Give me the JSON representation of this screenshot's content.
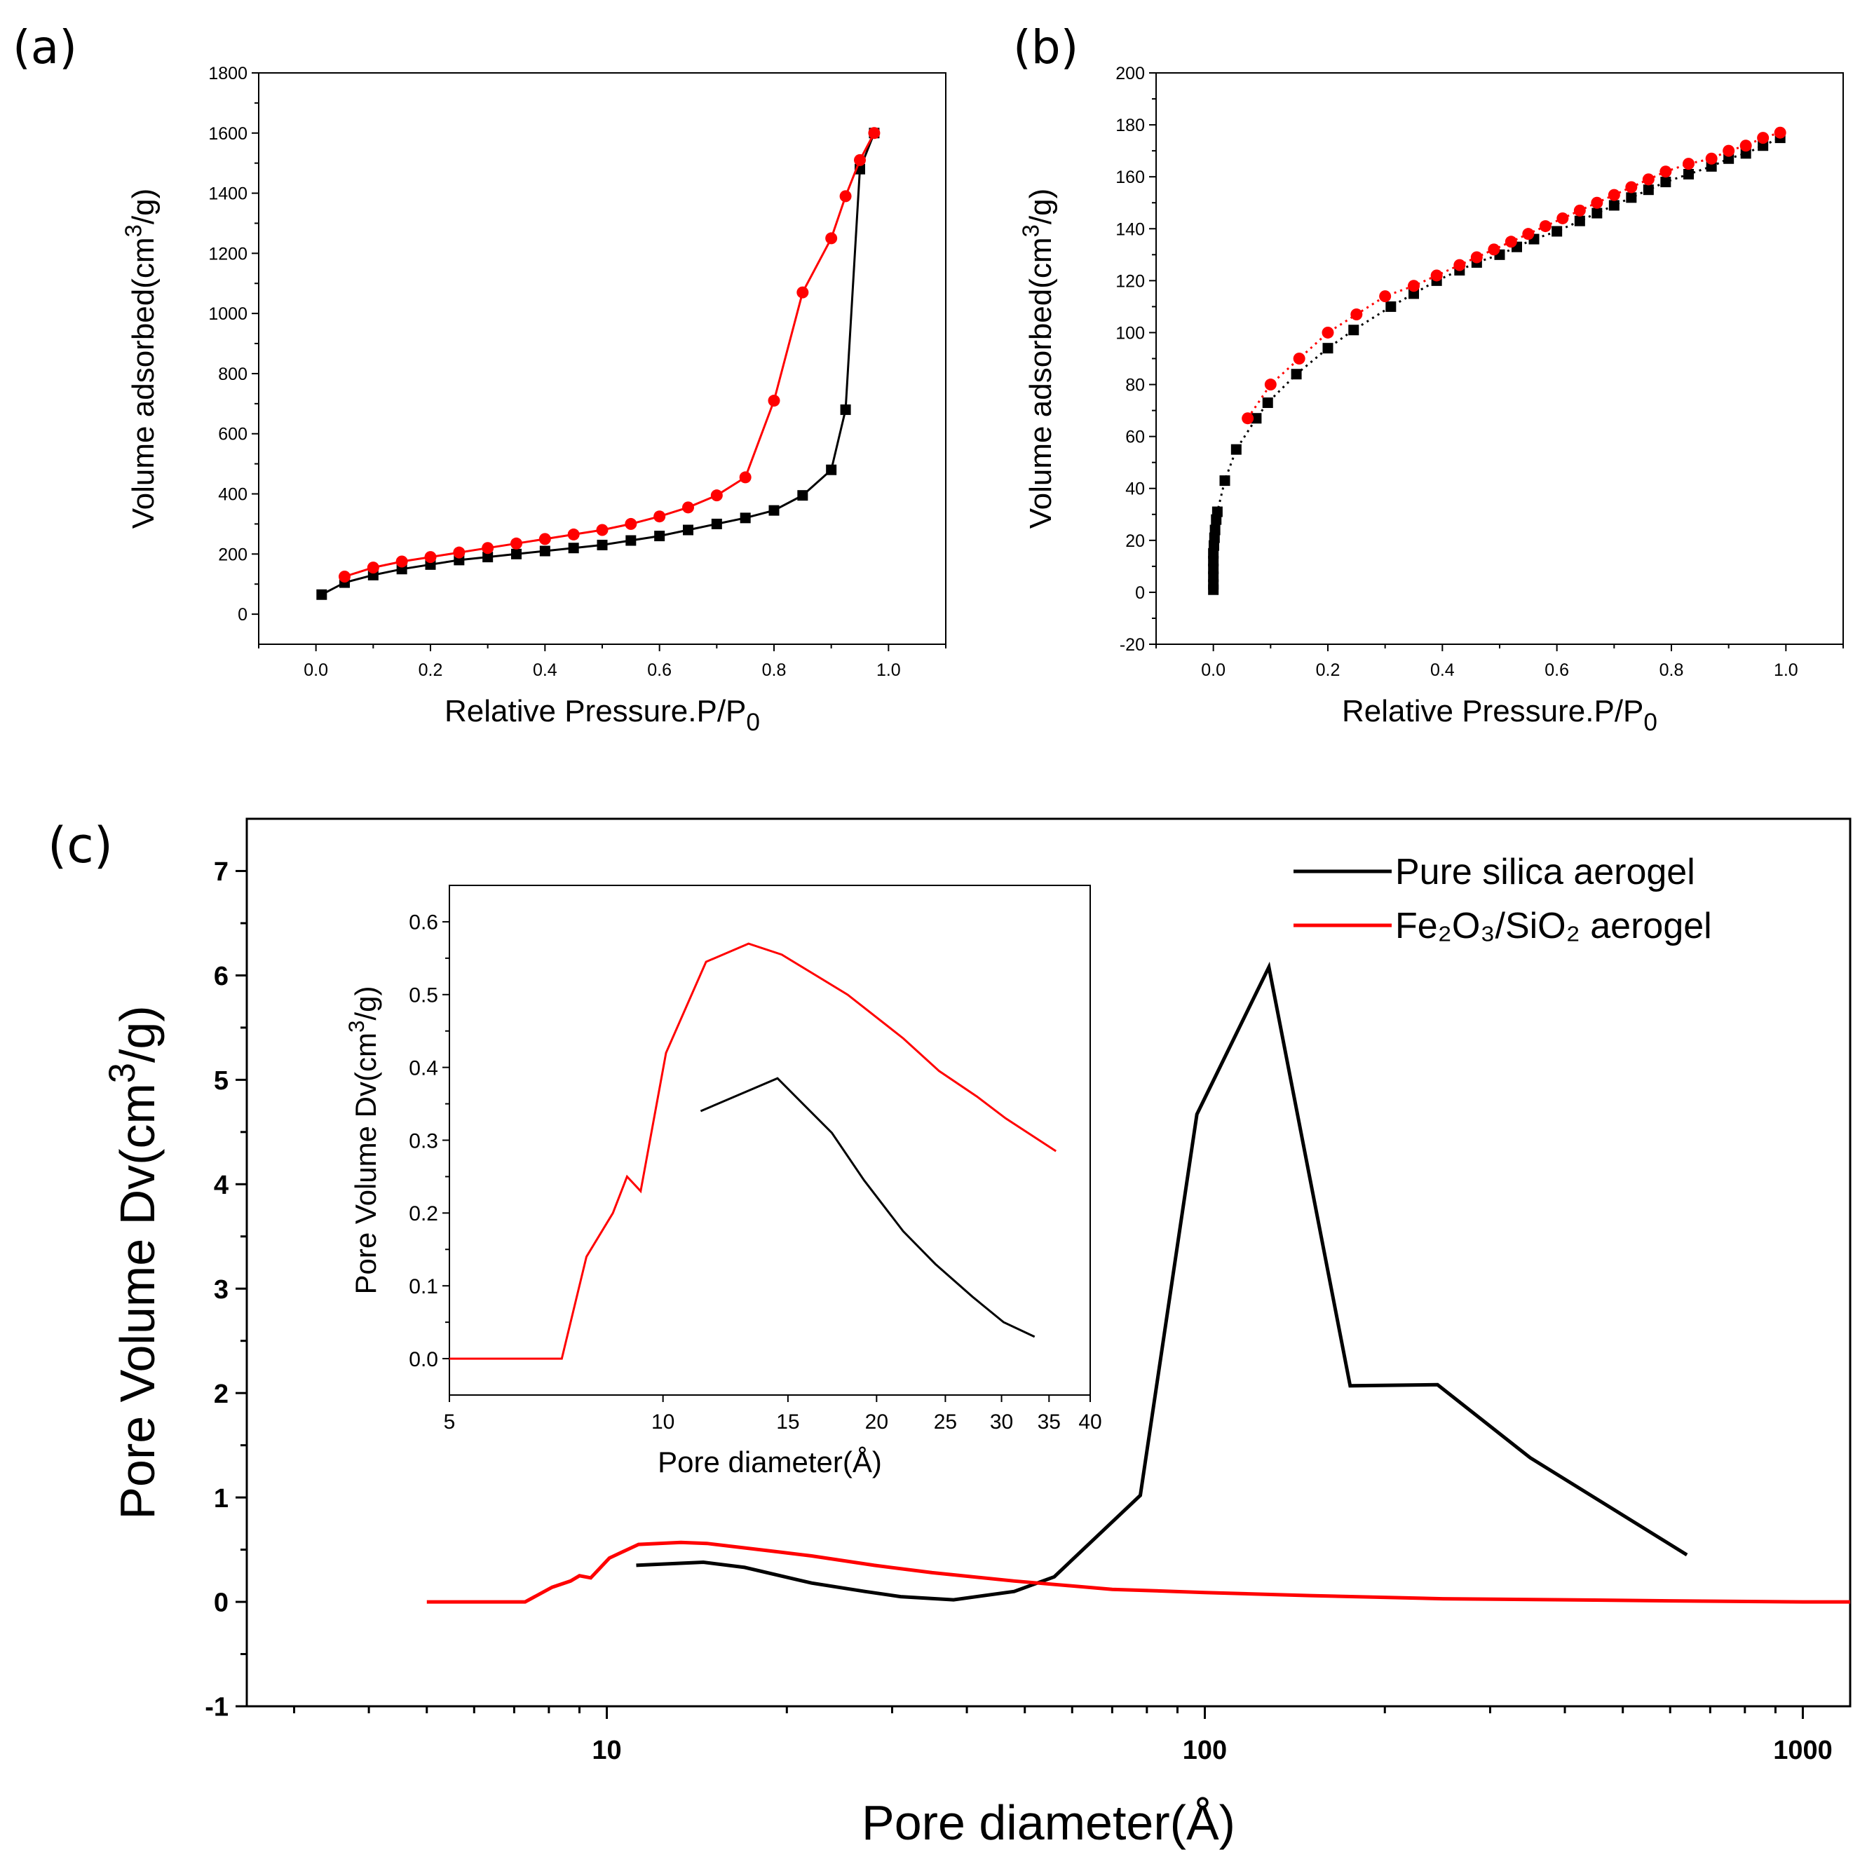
{
  "colors": {
    "black_series": "#000000",
    "red_series": "#ff0000"
  },
  "chart_data": [
    {
      "id": "a",
      "panel_label": "(a)",
      "type": "line",
      "xlabel": "Relative Pressure.P/P",
      "xlabel_sub": "0",
      "ylabel": "Volume adsorbed(cm",
      "ylabel_sup": "3",
      "ylabel_tail": "/g)",
      "xlim": [
        -0.1,
        1.1
      ],
      "ylim": [
        -100,
        1800
      ],
      "xticks": [
        "0.0",
        "0.2",
        "0.4",
        "0.6",
        "0.8",
        "1.0"
      ],
      "yticks": [
        "0",
        "200",
        "400",
        "600",
        "800",
        "1000",
        "1200",
        "1400",
        "1600",
        "1800"
      ],
      "series": [
        {
          "color": "#000000",
          "marker": "square",
          "x": [
            0.01,
            0.05,
            0.1,
            0.15,
            0.2,
            0.25,
            0.3,
            0.35,
            0.4,
            0.45,
            0.5,
            0.55,
            0.6,
            0.65,
            0.7,
            0.75,
            0.8,
            0.85,
            0.9,
            0.925,
            0.95,
            0.975
          ],
          "y": [
            65,
            105,
            130,
            150,
            165,
            180,
            190,
            200,
            210,
            220,
            230,
            245,
            260,
            280,
            300,
            320,
            345,
            395,
            480,
            680,
            1480,
            1600
          ]
        },
        {
          "color": "#ff0000",
          "marker": "circle",
          "x": [
            0.05,
            0.1,
            0.15,
            0.2,
            0.25,
            0.3,
            0.35,
            0.4,
            0.45,
            0.5,
            0.55,
            0.6,
            0.65,
            0.7,
            0.75,
            0.8,
            0.85,
            0.9,
            0.925,
            0.95,
            0.975
          ],
          "y": [
            125,
            155,
            175,
            190,
            205,
            220,
            235,
            250,
            265,
            280,
            300,
            325,
            355,
            395,
            455,
            710,
            1070,
            1250,
            1390,
            1510,
            1600
          ]
        }
      ]
    },
    {
      "id": "b",
      "panel_label": "(b)",
      "type": "scatter",
      "xlabel": "Relative Pressure.P/P",
      "xlabel_sub": "0",
      "ylabel": "Volume adsorbed(cm",
      "ylabel_sup": "3",
      "ylabel_tail": "/g)",
      "xlim": [
        -0.1,
        1.1
      ],
      "ylim": [
        -20,
        200
      ],
      "xticks": [
        "0.0",
        "0.2",
        "0.4",
        "0.6",
        "0.8",
        "1.0"
      ],
      "yticks": [
        "-20",
        "0",
        "20",
        "40",
        "60",
        "80",
        "100",
        "120",
        "140",
        "160",
        "180",
        "200"
      ],
      "series": [
        {
          "color": "#000000",
          "marker": "square",
          "x": [
            0.0,
            0.0,
            0.0,
            0.0,
            0.0,
            0.0,
            0.001,
            0.002,
            0.003,
            0.005,
            0.007,
            0.02,
            0.04,
            0.075,
            0.095,
            0.145,
            0.2,
            0.245,
            0.31,
            0.35,
            0.39,
            0.43,
            0.46,
            0.5,
            0.53,
            0.56,
            0.6,
            0.64,
            0.67,
            0.7,
            0.73,
            0.76,
            0.79,
            0.83,
            0.87,
            0.9,
            0.93,
            0.96,
            0.99
          ],
          "y": [
            1,
            3,
            6,
            9,
            12,
            15,
            18,
            21,
            24,
            28,
            31,
            43,
            55,
            67,
            73,
            84,
            94,
            101,
            110,
            115,
            120,
            124,
            127,
            130,
            133,
            136,
            139,
            143,
            146,
            149,
            152,
            155,
            158,
            161,
            164,
            167,
            169,
            172,
            175
          ]
        },
        {
          "color": "#ff0000",
          "marker": "circle",
          "x": [
            0.06,
            0.1,
            0.15,
            0.2,
            0.25,
            0.3,
            0.35,
            0.39,
            0.43,
            0.46,
            0.49,
            0.52,
            0.55,
            0.58,
            0.61,
            0.64,
            0.67,
            0.7,
            0.73,
            0.76,
            0.79,
            0.83,
            0.87,
            0.9,
            0.93,
            0.96,
            0.99
          ],
          "y": [
            67,
            80,
            90,
            100,
            107,
            114,
            118,
            122,
            126,
            129,
            132,
            135,
            138,
            141,
            144,
            147,
            150,
            153,
            156,
            159,
            162,
            165,
            167,
            170,
            172,
            175,
            177
          ]
        }
      ]
    },
    {
      "id": "c",
      "panel_label": "(c)",
      "type": "line",
      "xscale": "log",
      "xlabel": "Pore diameter(Å)",
      "ylabel": "Pore Volume Dv(cm",
      "ylabel_sup": "3",
      "ylabel_tail": "/g)",
      "xlim": [
        2.5,
        1200
      ],
      "ylim": [
        -1,
        7.5
      ],
      "xticks": [
        "10",
        "100",
        "1000"
      ],
      "yticks": [
        "-1",
        "0",
        "1",
        "2",
        "3",
        "4",
        "5",
        "6",
        "7"
      ],
      "legend": {
        "position": "top-right"
      },
      "series": [
        {
          "name": "Pure silica aerogel",
          "color": "#000000",
          "x": [
            11.2,
            14.5,
            17,
            22,
            27,
            31,
            38,
            48,
            56,
            78,
            97,
            128,
            175,
            245,
            350,
            640
          ],
          "y": [
            0.35,
            0.38,
            0.33,
            0.18,
            0.1,
            0.05,
            0.02,
            0.1,
            0.24,
            1.02,
            4.67,
            6.08,
            2.07,
            2.08,
            1.38,
            0.45
          ]
        },
        {
          "name": "Fe₂O₃/SiO₂ aerogel",
          "color": "#ff0000",
          "x": [
            5,
            7.3,
            8.1,
            8.7,
            9.0,
            9.4,
            10.1,
            11.3,
            13.3,
            14.7,
            19.3,
            22,
            28,
            35,
            48,
            70,
            100,
            150,
            250,
            400,
            600,
            1000,
            1200
          ],
          "y": [
            0.0,
            0.0,
            0.14,
            0.2,
            0.25,
            0.23,
            0.42,
            0.55,
            0.57,
            0.56,
            0.48,
            0.44,
            0.35,
            0.28,
            0.2,
            0.12,
            0.09,
            0.06,
            0.03,
            0.02,
            0.01,
            0.0,
            0.0
          ]
        }
      ]
    },
    {
      "id": "c-inset",
      "type": "line",
      "xscale": "log",
      "xlabel": "Pore diameter(Å)",
      "ylabel": "Pore Volume Dv(cm",
      "ylabel_sup": "3",
      "ylabel_tail": "/g)",
      "xlim": [
        5,
        40
      ],
      "ylim": [
        -0.05,
        0.65
      ],
      "xticks": [
        "5",
        "10",
        "15",
        "20",
        "25",
        "30",
        "35",
        "40"
      ],
      "yticks": [
        "0.0",
        "0.1",
        "0.2",
        "0.3",
        "0.4",
        "0.5",
        "0.6"
      ],
      "series": [
        {
          "color": "#000000",
          "x": [
            11.3,
            14.5,
            17.3,
            19.2,
            21.8,
            24.2,
            27.3,
            30.2,
            33.4
          ],
          "y": [
            0.34,
            0.385,
            0.31,
            0.245,
            0.175,
            0.13,
            0.085,
            0.05,
            0.03
          ]
        },
        {
          "color": "#ff0000",
          "x": [
            5,
            7.2,
            7.8,
            8.5,
            8.9,
            9.3,
            10.1,
            11.5,
            13.2,
            14.7,
            18.2,
            21.8,
            24.5,
            27.7,
            30.4,
            35.8
          ],
          "y": [
            0.0,
            0.0,
            0.14,
            0.2,
            0.25,
            0.23,
            0.42,
            0.545,
            0.57,
            0.555,
            0.5,
            0.44,
            0.395,
            0.36,
            0.33,
            0.285
          ]
        }
      ]
    }
  ]
}
